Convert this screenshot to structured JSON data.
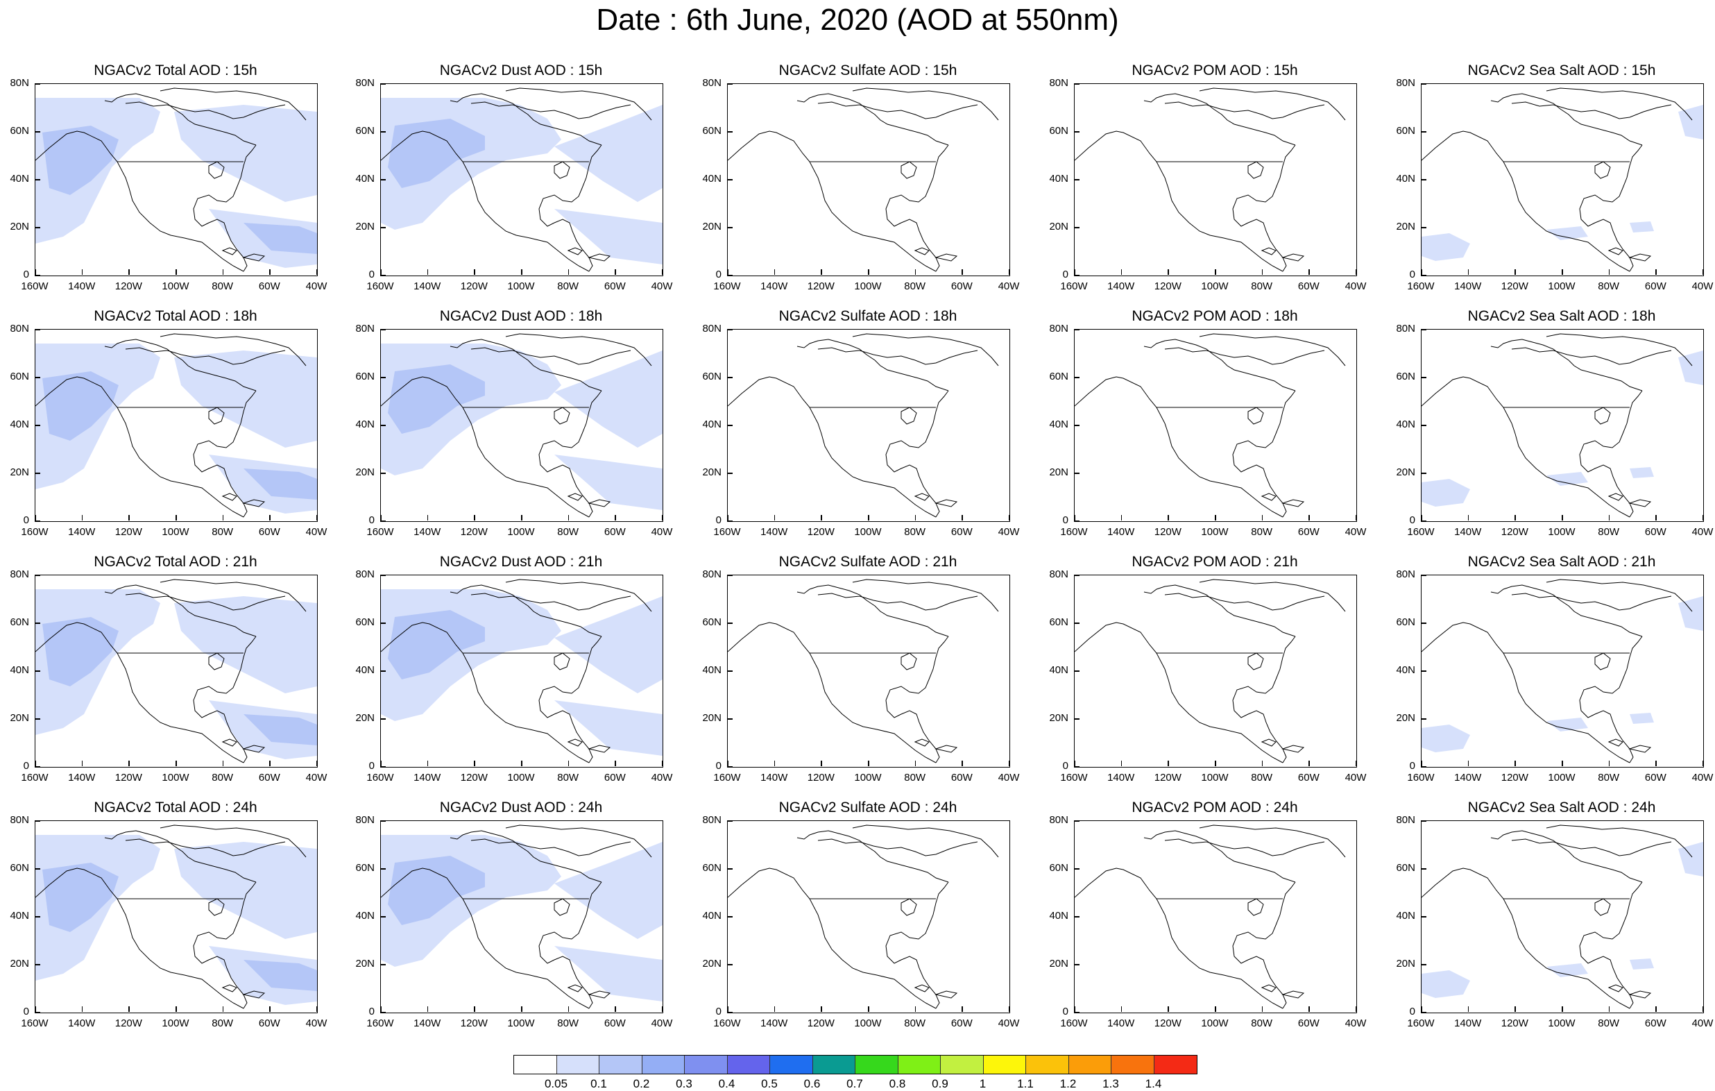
{
  "title": "Date : 6th June, 2020 (AOD at 550nm)",
  "panels": [
    {
      "title": "NGACv2 Total AOD : 15h",
      "species": "total"
    },
    {
      "title": "NGACv2 Dust AOD : 15h",
      "species": "dust"
    },
    {
      "title": "NGACv2 Sulfate AOD : 15h",
      "species": "sulfate"
    },
    {
      "title": "NGACv2 POM AOD : 15h",
      "species": "pom"
    },
    {
      "title": "NGACv2 Sea Salt AOD : 15h",
      "species": "seasalt"
    },
    {
      "title": "NGACv2 Total AOD : 18h",
      "species": "total"
    },
    {
      "title": "NGACv2 Dust AOD : 18h",
      "species": "dust"
    },
    {
      "title": "NGACv2 Sulfate AOD : 18h",
      "species": "sulfate"
    },
    {
      "title": "NGACv2 POM AOD : 18h",
      "species": "pom"
    },
    {
      "title": "NGACv2 Sea Salt AOD : 18h",
      "species": "seasalt"
    },
    {
      "title": "NGACv2 Total AOD : 21h",
      "species": "total"
    },
    {
      "title": "NGACv2 Dust AOD : 21h",
      "species": "dust"
    },
    {
      "title": "NGACv2 Sulfate AOD : 21h",
      "species": "sulfate"
    },
    {
      "title": "NGACv2 POM AOD : 21h",
      "species": "pom"
    },
    {
      "title": "NGACv2 Sea Salt AOD : 21h",
      "species": "seasalt"
    },
    {
      "title": "NGACv2 Total AOD : 24h",
      "species": "total"
    },
    {
      "title": "NGACv2 Dust AOD : 24h",
      "species": "dust"
    },
    {
      "title": "NGACv2 Sulfate AOD : 24h",
      "species": "sulfate"
    },
    {
      "title": "NGACv2 POM AOD : 24h",
      "species": "pom"
    },
    {
      "title": "NGACv2 Sea Salt  AOD : 24h",
      "species": "seasalt"
    }
  ],
  "lat_ticks": [
    "80N",
    "60N",
    "40N",
    "20N",
    "0"
  ],
  "lon_ticks": [
    "160W",
    "140W",
    "120W",
    "100W",
    "80W",
    "60W",
    "40W"
  ],
  "colorbar": {
    "colors": [
      "#ffffff",
      "#d6e0fb",
      "#b4c6f7",
      "#94aef5",
      "#7f90f0",
      "#6464ec",
      "#1f6ef0",
      "#0a9b92",
      "#36d81c",
      "#7ff016",
      "#c2f040",
      "#fdf60a",
      "#fbc20a",
      "#fb9d09",
      "#f8730d",
      "#f42a15"
    ],
    "labels": [
      "0.05",
      "0.1",
      "0.2",
      "0.3",
      "0.4",
      "0.5",
      "0.6",
      "0.7",
      "0.8",
      "0.9",
      "1",
      "1.1",
      "1.2",
      "1.3",
      "1.4"
    ]
  },
  "coastline_color": "#000000"
}
